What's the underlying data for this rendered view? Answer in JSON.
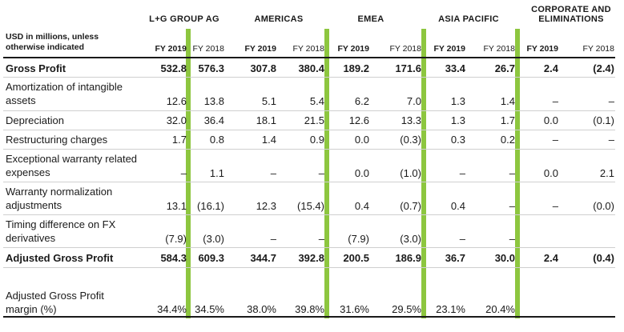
{
  "header": {
    "unit_note": "USD in millions, unless otherwise indicated",
    "groups": [
      "L+G GROUP AG",
      "AMERICAS",
      "EMEA",
      "ASIA PACIFIC",
      "CORPORATE AND ELIMINATIONS"
    ],
    "years": [
      "FY 2019",
      "FY 2018",
      "FY 2019",
      "FY 2018",
      "FY 2019",
      "FY 2018",
      "FY 2019",
      "FY 2018",
      "FY 2019",
      "FY 2018"
    ]
  },
  "rows": [
    {
      "label": "Gross Profit",
      "bold": true,
      "values": [
        "532.8",
        "576.3",
        "307.8",
        "380.4",
        "189.2",
        "171.6",
        "33.4",
        "26.7",
        "2.4",
        "(2.4)"
      ]
    },
    {
      "label": "Amortization of intangible assets",
      "bold": false,
      "values": [
        "12.6",
        "13.8",
        "5.1",
        "5.4",
        "6.2",
        "7.0",
        "1.3",
        "1.4",
        "–",
        "–"
      ]
    },
    {
      "label": "Depreciation",
      "bold": false,
      "values": [
        "32.0",
        "36.4",
        "18.1",
        "21.5",
        "12.6",
        "13.3",
        "1.3",
        "1.7",
        "0.0",
        "(0.1)"
      ]
    },
    {
      "label": "Restructuring charges",
      "bold": false,
      "values": [
        "1.7",
        "0.8",
        "1.4",
        "0.9",
        "0.0",
        "(0.3)",
        "0.3",
        "0.2",
        "–",
        "–"
      ]
    },
    {
      "label": "Exceptional warranty related expenses",
      "bold": false,
      "values": [
        "–",
        "1.1",
        "–",
        "–",
        "0.0",
        "(1.0)",
        "–",
        "–",
        "0.0",
        "2.1"
      ]
    },
    {
      "label": "Warranty normalization adjustments",
      "bold": false,
      "values": [
        "13.1",
        "(16.1)",
        "12.3",
        "(15.4)",
        "0.4",
        "(0.7)",
        "0.4",
        "–",
        "–",
        "(0.0)"
      ]
    },
    {
      "label": "Timing difference on FX derivatives",
      "bold": false,
      "values": [
        "(7.9)",
        "(3.0)",
        "–",
        "–",
        "(7.9)",
        "(3.0)",
        "–",
        "–",
        "",
        ""
      ]
    },
    {
      "label": "Adjusted Gross Profit",
      "bold": true,
      "values": [
        "584.3",
        "609.3",
        "344.7",
        "392.8",
        "200.5",
        "186.9",
        "36.7",
        "30.0",
        "2.4",
        "(0.4)"
      ]
    },
    {
      "label": "Adjusted Gross Profit margin (%)",
      "bold": false,
      "values": [
        "34.4%",
        "34.5%",
        "38.0%",
        "39.8%",
        "31.6%",
        "29.5%",
        "23.1%",
        "20.4%",
        "",
        ""
      ]
    }
  ],
  "colors": {
    "accent": "#8dc63f",
    "text": "#1a1a1a",
    "rule": "#cfcfcf"
  }
}
